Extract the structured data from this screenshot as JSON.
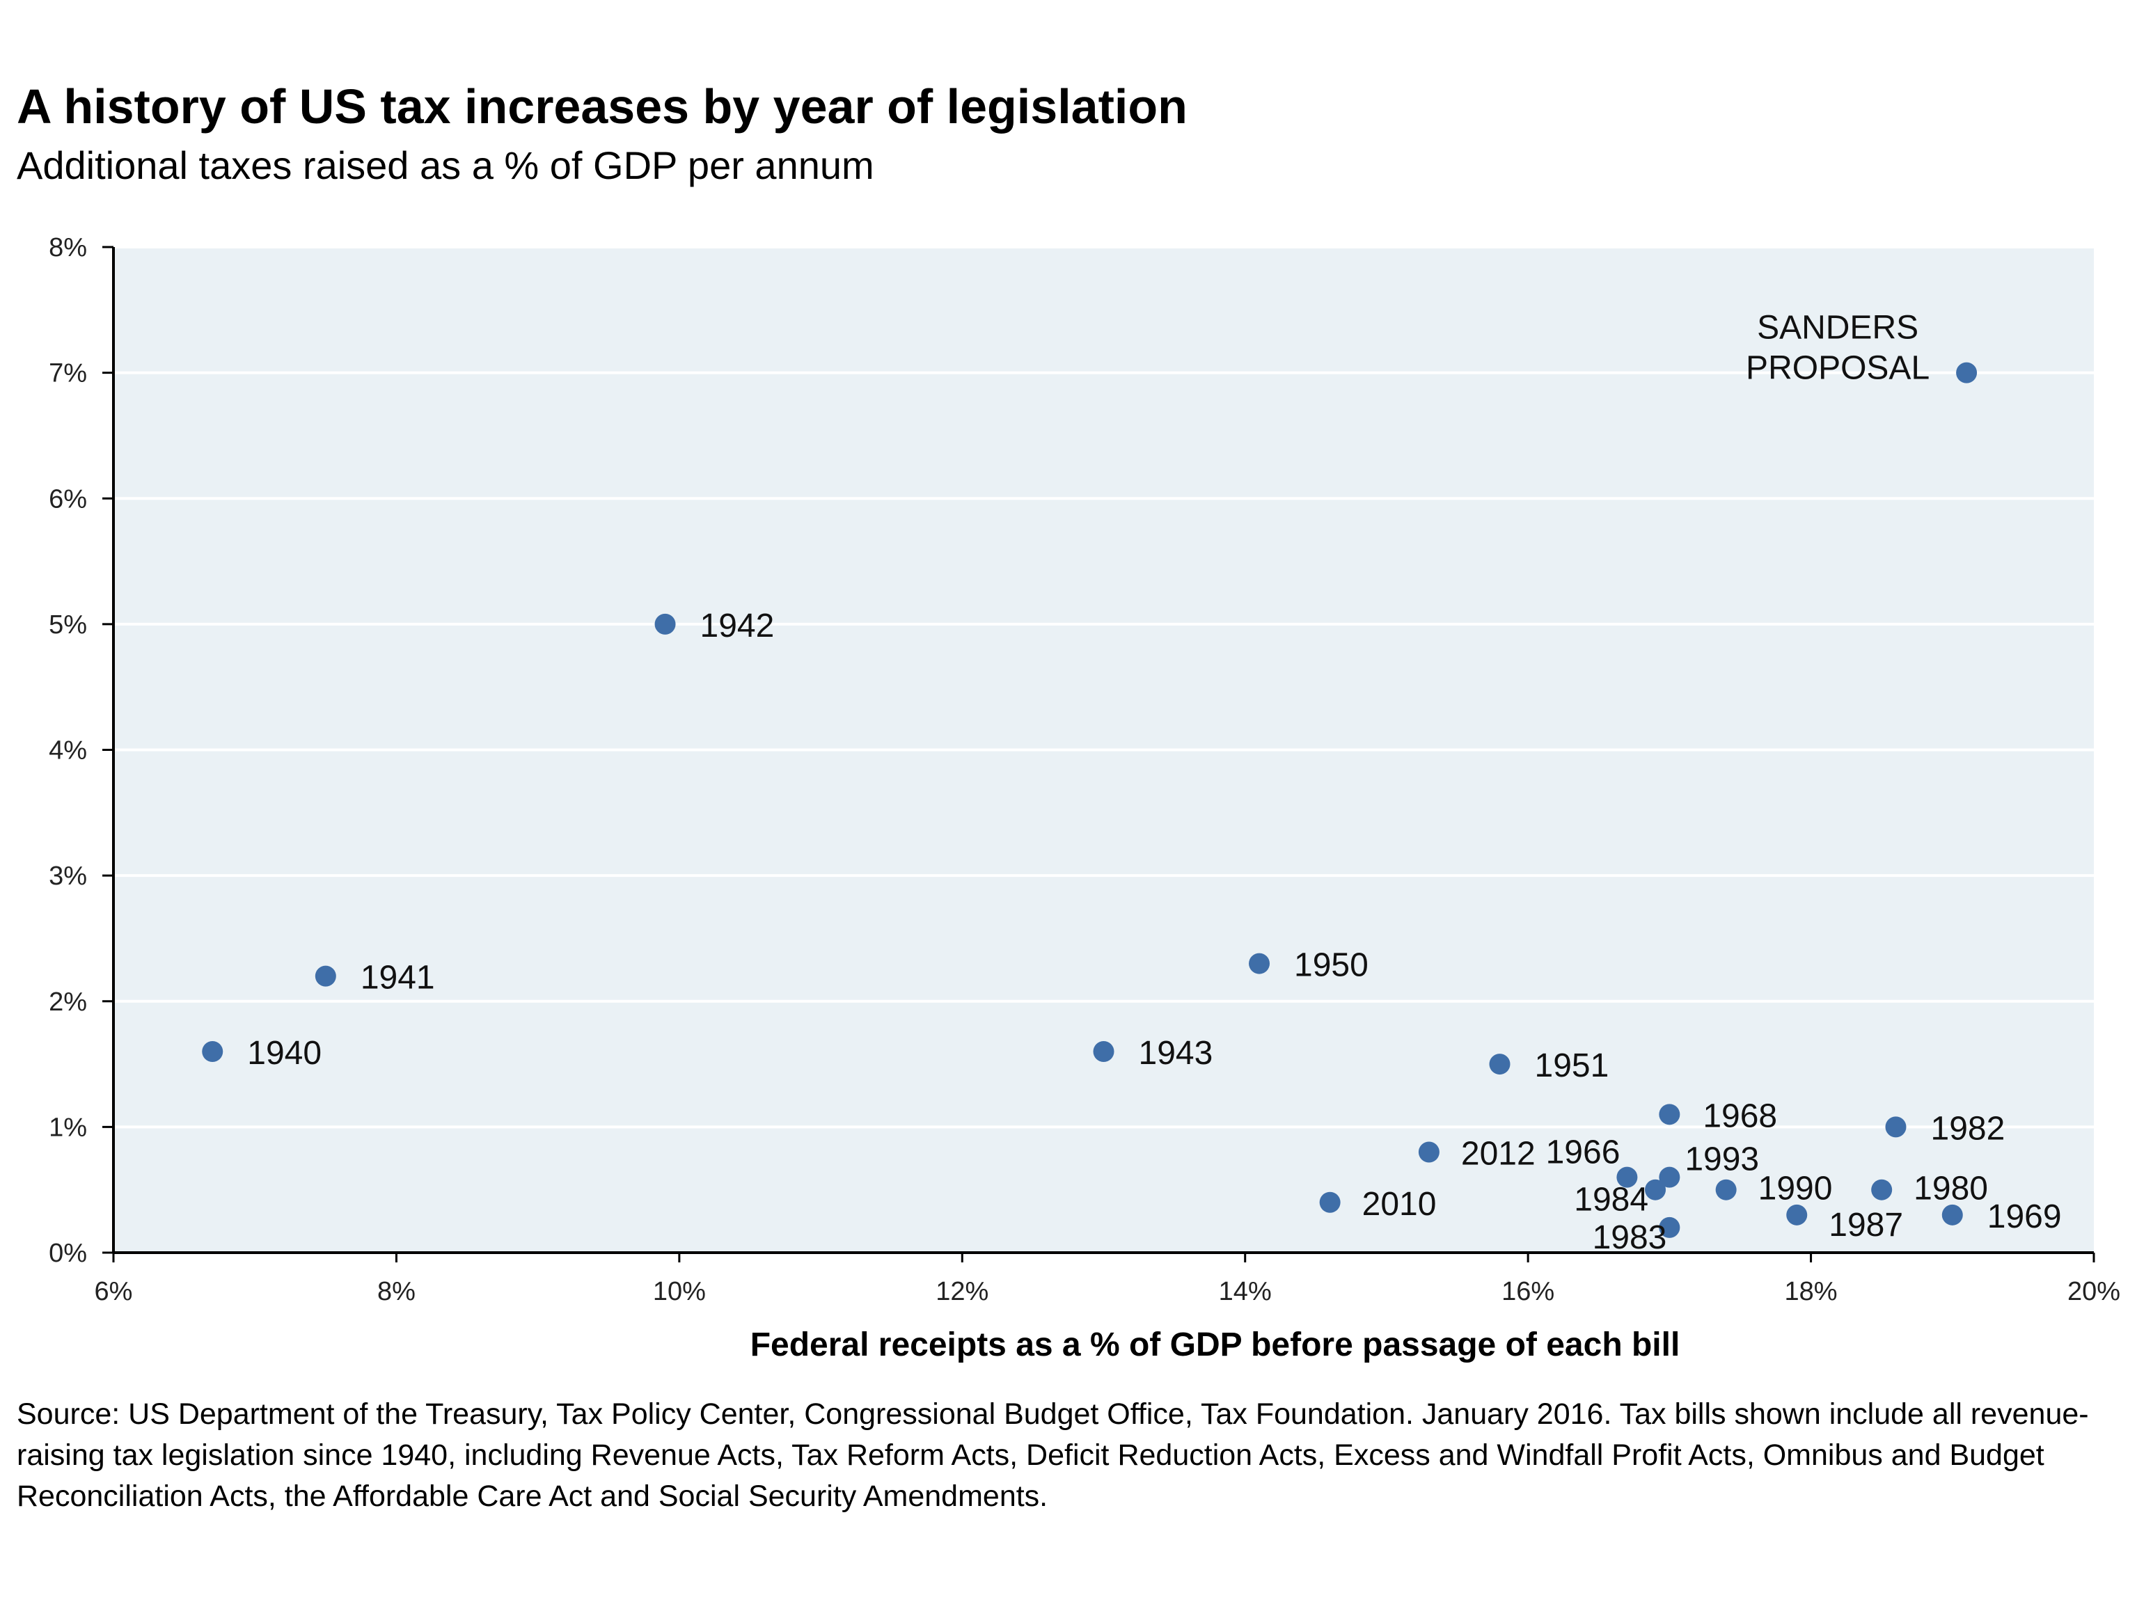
{
  "chart_data": {
    "type": "scatter",
    "title": "A history of US tax increases by year of legislation",
    "subtitle": "Additional taxes raised as a % of GDP per annum",
    "xlabel": "Federal receipts as a % of GDP before passage of each bill",
    "ylabel": "",
    "xlim": [
      6,
      20
    ],
    "ylim": [
      0,
      8
    ],
    "x_ticks": [
      "6%",
      "8%",
      "10%",
      "12%",
      "14%",
      "16%",
      "18%",
      "20%"
    ],
    "y_ticks": [
      "0%",
      "1%",
      "2%",
      "3%",
      "4%",
      "5%",
      "6%",
      "7%",
      "8%"
    ],
    "grid": true,
    "colors": {
      "point": "#3f6ea8",
      "plot_background": "#eaf1f5",
      "grid": "#ffffff"
    },
    "points": [
      {
        "label": "1940",
        "x": 6.7,
        "y": 1.6
      },
      {
        "label": "1941",
        "x": 7.5,
        "y": 2.2
      },
      {
        "label": "1942",
        "x": 9.9,
        "y": 5.0
      },
      {
        "label": "1943",
        "x": 13.0,
        "y": 1.6
      },
      {
        "label": "1950",
        "x": 14.1,
        "y": 2.3
      },
      {
        "label": "1951",
        "x": 15.8,
        "y": 1.5
      },
      {
        "label": "2010",
        "x": 14.6,
        "y": 0.4
      },
      {
        "label": "2012",
        "x": 15.3,
        "y": 0.8
      },
      {
        "label": "1966",
        "x": 16.7,
        "y": 0.6
      },
      {
        "label": "1984",
        "x": 16.9,
        "y": 0.5
      },
      {
        "label": "1993",
        "x": 17.0,
        "y": 0.6
      },
      {
        "label": "1983",
        "x": 17.0,
        "y": 0.2
      },
      {
        "label": "1968",
        "x": 17.0,
        "y": 1.1
      },
      {
        "label": "1990",
        "x": 17.4,
        "y": 0.5
      },
      {
        "label": "1987",
        "x": 17.9,
        "y": 0.3
      },
      {
        "label": "1980",
        "x": 18.5,
        "y": 0.5
      },
      {
        "label": "1982",
        "x": 18.6,
        "y": 1.0
      },
      {
        "label": "1969",
        "x": 19.0,
        "y": 0.3
      },
      {
        "label": "SANDERS PROPOSAL",
        "label_lines": [
          "SANDERS",
          "PROPOSAL"
        ],
        "x": 19.1,
        "y": 7.0
      }
    ]
  },
  "source_note": "Source: US Department of the Treasury, Tax Policy Center, Congressional Budget Office, Tax Foundation. January 2016.  Tax bills shown include all revenue-raising tax legislation since 1940, including Revenue Acts, Tax Reform Acts, Deficit Reduction Acts, Excess and Windfall Profit Acts, Omnibus and Budget Reconciliation Acts, the Affordable Care Act and Social Security Amendments."
}
